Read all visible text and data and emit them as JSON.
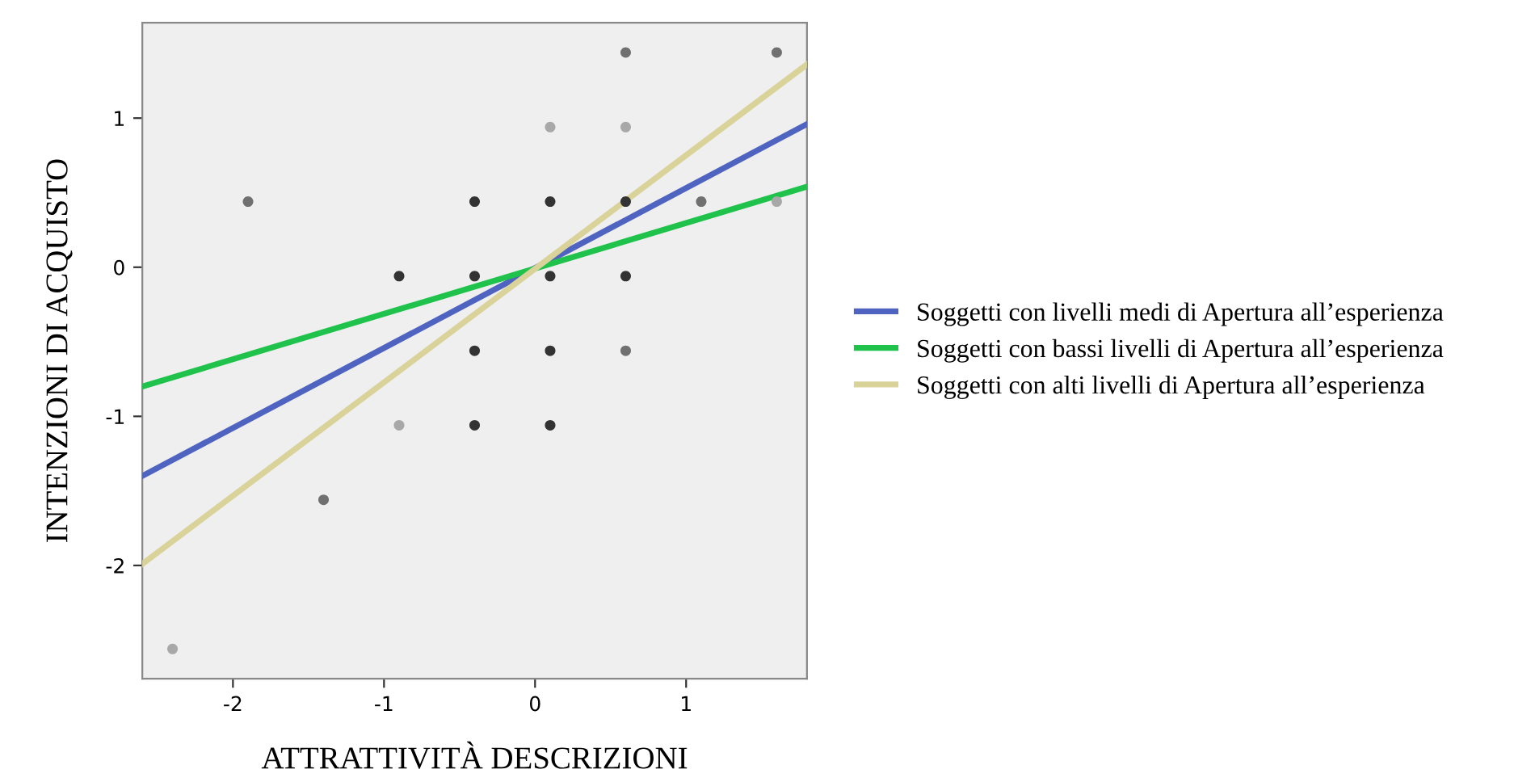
{
  "chart_data": {
    "type": "scatter",
    "xlabel": "ATTRATTIVITÀ DESCRIZIONI",
    "ylabel": "INTENZIONI DI ACQUISTO",
    "xlim": [
      -2.6,
      1.8
    ],
    "ylim": [
      -2.76,
      1.64
    ],
    "xticks": [
      -2,
      -1,
      0,
      1
    ],
    "yticks": [
      -2,
      -1,
      0,
      1
    ],
    "grid": false,
    "legend": "right",
    "series": [
      {
        "marker": "circle",
        "x": [
          0.6,
          1.6,
          0.1,
          0.6,
          -1.9,
          -0.4,
          0.1,
          0.6,
          1.1,
          1.6,
          -0.9,
          -0.4,
          0.1,
          0.6,
          -0.4,
          0.1,
          0.6,
          -0.9,
          -0.4,
          0.1,
          -1.4,
          -2.4
        ],
        "values": [
          1.44,
          1.44,
          0.94,
          0.94,
          0.44,
          0.44,
          0.44,
          0.44,
          0.44,
          0.44,
          -0.06,
          -0.06,
          -0.06,
          -0.06,
          -0.56,
          -0.56,
          -0.56,
          -1.06,
          -1.06,
          -1.06,
          -1.56,
          -2.56
        ],
        "colors": [
          "#707070",
          "#707070",
          "#a8a8a8",
          "#a8a8a8",
          "#707070",
          "#333333",
          "#333333",
          "#333333",
          "#707070",
          "#a8a8a8",
          "#333333",
          "#333333",
          "#333333",
          "#333333",
          "#333333",
          "#333333",
          "#707070",
          "#a8a8a8",
          "#333333",
          "#333333",
          "#707070",
          "#a8a8a8"
        ]
      },
      {
        "type": "line",
        "name": "Soggetti con livelli medi di Apertura all’esperienza",
        "color": "#4f63c0",
        "x": [
          -2.6,
          1.8
        ],
        "values": [
          -1.4,
          0.96
        ]
      },
      {
        "type": "line",
        "name": "Soggetti con bassi livelli di Apertura all’esperienza",
        "color": "#1fc24a",
        "x": [
          -2.6,
          1.8
        ],
        "values": [
          -0.8,
          0.54
        ]
      },
      {
        "type": "line",
        "name": "Soggetti con alti livelli di Apertura all’esperienza",
        "color": "#d9d39a",
        "x": [
          -2.6,
          1.8
        ],
        "values": [
          -1.99,
          1.36
        ]
      }
    ]
  }
}
